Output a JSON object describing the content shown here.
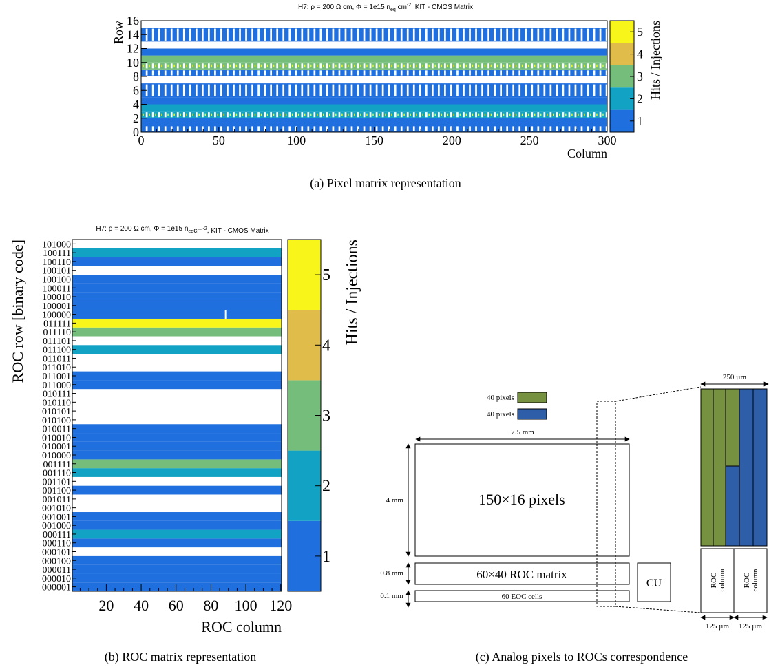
{
  "colors": {
    "c1": "#1f6fde",
    "c2": "#12a3c4",
    "c3": "#74bd7a",
    "c4": "#e0bd4a",
    "c5": "#f7f51a",
    "green": "#76913f",
    "blue": "#2e5ea8"
  },
  "chart_data": [
    {
      "type": "heatmap",
      "title": "H7: ρ = 200 Ω cm, Φ = 1e15 n_eq cm^-2, KIT - CMOS Matrix",
      "xlabel": "Column",
      "ylabel": "Row",
      "zlabel": "Hits / Injections",
      "xlim": [
        0,
        300
      ],
      "ylim": [
        0,
        16
      ],
      "zlim": [
        0.5,
        5.5
      ],
      "x_ticks": [
        "0",
        "50",
        "100",
        "150",
        "200",
        "250",
        "300"
      ],
      "y_ticks": [
        "0",
        "2",
        "4",
        "6",
        "8",
        "10",
        "12",
        "14",
        "16"
      ],
      "z_ticks": [
        "1",
        "2",
        "3",
        "4",
        "5"
      ],
      "rows": [
        {
          "range": [
            0,
            1
          ],
          "value": 1,
          "pattern": "comb"
        },
        {
          "range": [
            1,
            2
          ],
          "value": 1,
          "pattern": "full"
        },
        {
          "range": [
            2,
            3
          ],
          "value": 2,
          "pattern": "comb-yellow-marks"
        },
        {
          "range": [
            3,
            4
          ],
          "value": 2,
          "pattern": "full"
        },
        {
          "range": [
            4,
            5
          ],
          "value": 1,
          "pattern": "full"
        },
        {
          "range": [
            5,
            7
          ],
          "value": 1,
          "pattern": "comb"
        },
        {
          "range": [
            7,
            8
          ],
          "value": 0,
          "pattern": "empty"
        },
        {
          "range": [
            8,
            9
          ],
          "value": 1,
          "pattern": "comb"
        },
        {
          "range": [
            9,
            10
          ],
          "value": 3,
          "pattern": "comb-yellow-marks"
        },
        {
          "range": [
            10,
            11
          ],
          "value": 3,
          "pattern": "full"
        },
        {
          "range": [
            11,
            12
          ],
          "value": 1,
          "pattern": "full"
        },
        {
          "range": [
            12,
            13
          ],
          "value": 0,
          "pattern": "empty"
        },
        {
          "range": [
            13,
            15
          ],
          "value": 1,
          "pattern": "comb"
        },
        {
          "range": [
            15,
            16
          ],
          "value": 0,
          "pattern": "empty"
        }
      ],
      "caption": "(a)  Pixel matrix representation"
    },
    {
      "type": "heatmap",
      "title": "H7: ρ = 200 Ω cm, Φ = 1e15 n_eq cm^-2, KIT - CMOS Matrix",
      "xlabel": "ROC column",
      "ylabel": "ROC row [binary code]",
      "zlabel": "Hits / Injections",
      "xlim": [
        1,
        120
      ],
      "x_ticks": [
        "20",
        "40",
        "60",
        "80",
        "100",
        "120"
      ],
      "z_ticks": [
        "1",
        "2",
        "3",
        "4",
        "5"
      ],
      "y_labels": [
        "000001",
        "000010",
        "000011",
        "000100",
        "000101",
        "000110",
        "000111",
        "001000",
        "001001",
        "001010",
        "001011",
        "001100",
        "001101",
        "001110",
        "001111",
        "010000",
        "010001",
        "010010",
        "010011",
        "010100",
        "010101",
        "010110",
        "010111",
        "011000",
        "011001",
        "011010",
        "011011",
        "011100",
        "011101",
        "011110",
        "011111",
        "100000",
        "100001",
        "100010",
        "100011",
        "100100",
        "100101",
        "100110",
        "100111",
        "101000"
      ],
      "row_values": [
        1,
        1,
        1,
        1,
        0,
        1,
        2,
        1,
        1,
        0,
        0,
        1,
        0,
        2,
        3,
        1,
        1,
        1,
        1,
        0,
        0,
        0,
        0,
        1,
        1,
        0,
        0,
        2,
        0,
        3,
        5,
        1,
        1,
        1,
        1,
        1,
        0,
        1,
        2,
        0
      ],
      "caption": "(b)  ROC matrix representation"
    }
  ],
  "diagram": {
    "legend": [
      {
        "label": "40 pixels",
        "color": "green"
      },
      {
        "label": "40 pixels",
        "color": "blue"
      }
    ],
    "width_label": "7.5 mm",
    "height_label": "4 mm",
    "pixels_label": "150×16 pixels",
    "roc_height_label": "0.8 mm",
    "roc_label": "60×40 ROC matrix",
    "eoc_height_label": "0.1 mm",
    "eoc_label": "60 EOC cells",
    "cu_label": "CU",
    "zoom_width_label": "250 µm",
    "roc_column_label_1": "ROC column",
    "roc_column_label_2": "ROC column",
    "col_width_label_1": "125 µm",
    "col_width_label_2": "125 µm",
    "caption": "(c)  Analog pixels to ROCs correspondence"
  }
}
